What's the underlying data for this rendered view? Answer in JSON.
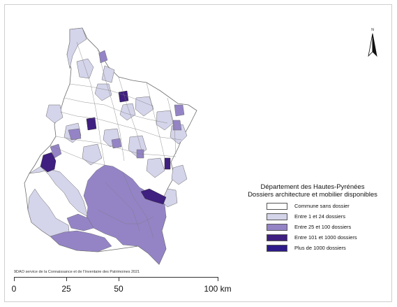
{
  "legend": {
    "title_line1": "Département des Hautes-Pyrénées",
    "title_line2": "Dossiers architecture et mobilier disponibles",
    "items": [
      {
        "label": "Commune sans dossier",
        "color": "#ffffff"
      },
      {
        "label": "Entre 1 et 24 dossiers",
        "color": "#d4d4ea"
      },
      {
        "label": "Entre 25 et 100 dossiers",
        "color": "#9484c6"
      },
      {
        "label": "Entre 101 et 1000 dossiers",
        "color": "#3f1f80"
      },
      {
        "label": "Plus de 1000 dossiers",
        "color": "#2e1a8a"
      }
    ]
  },
  "credit": "9DAO service de la Connaissance et de l'Inventaire des Patrimoines 2021",
  "scale": {
    "labels": [
      "0",
      "25",
      "50",
      "100 km"
    ]
  },
  "north_arrow": {
    "label": "N",
    "icon": "north-arrow-icon"
  },
  "map_colors": {
    "none": "#ffffff",
    "low": "#d4d4ea",
    "mid": "#9484c6",
    "high": "#3f1f80",
    "top": "#2e1a8a",
    "border": "#6b6b6b"
  }
}
